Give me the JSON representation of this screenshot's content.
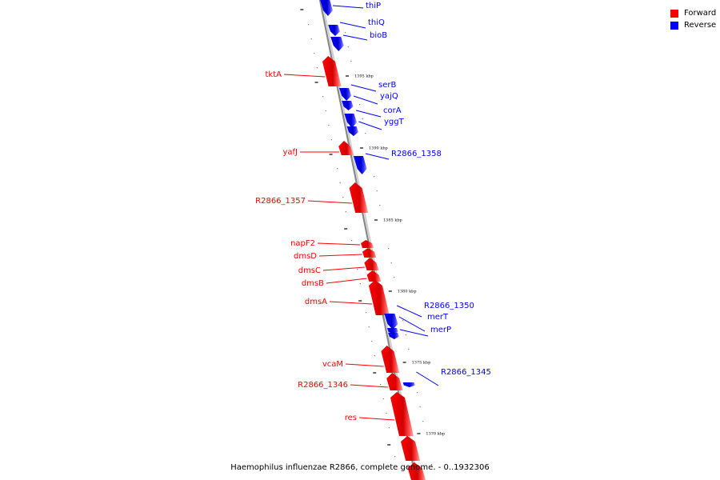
{
  "legend": {
    "forward_label": "Forward",
    "reverse_label": "Reverse",
    "forward_color": "#ff0000",
    "reverse_color": "#0000ff"
  },
  "caption": "Haemophilus influenzae R2866, complete genome. - 0..1932306",
  "colors": {
    "backbone": "#888888",
    "forward": "#ff0000",
    "reverse": "#0000ff"
  },
  "tick_labels": [
    "1395 kbp",
    "1390 kbp",
    "1385 kbp",
    "1380 kbp",
    "1375 kbp",
    "1370 kbp"
  ],
  "genes": [
    {
      "name": "thiP",
      "strand": "reverse"
    },
    {
      "name": "thiQ",
      "strand": "reverse"
    },
    {
      "name": "bioB",
      "strand": "reverse"
    },
    {
      "name": "tktA",
      "strand": "forward"
    },
    {
      "name": "serB",
      "strand": "reverse"
    },
    {
      "name": "yajQ",
      "strand": "reverse"
    },
    {
      "name": "corA",
      "strand": "reverse"
    },
    {
      "name": "yggT",
      "strand": "reverse"
    },
    {
      "name": "yafJ",
      "strand": "forward"
    },
    {
      "name": "R2866_1358",
      "strand": "reverse"
    },
    {
      "name": "R2866_1357",
      "strand": "forward"
    },
    {
      "name": "napF2",
      "strand": "forward"
    },
    {
      "name": "dmsD",
      "strand": "forward"
    },
    {
      "name": "dmsC",
      "strand": "forward"
    },
    {
      "name": "dmsB",
      "strand": "forward"
    },
    {
      "name": "dmsA",
      "strand": "forward"
    },
    {
      "name": "R2866_1350",
      "strand": "reverse"
    },
    {
      "name": "merT",
      "strand": "reverse"
    },
    {
      "name": "merP",
      "strand": "reverse"
    },
    {
      "name": "vcaM",
      "strand": "forward"
    },
    {
      "name": "R2866_1345",
      "strand": "reverse"
    },
    {
      "name": "R2866_1346",
      "strand": "forward"
    },
    {
      "name": "res",
      "strand": "forward"
    }
  ]
}
